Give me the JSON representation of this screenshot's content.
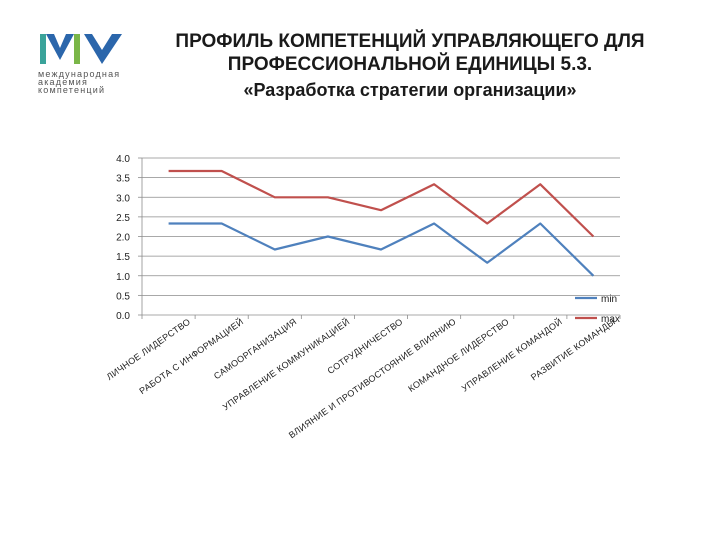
{
  "logo": {
    "line1": "международная",
    "line2": "академия",
    "line3": "компетенций",
    "colors": {
      "green": "#7ab648",
      "blue": "#2b66ab",
      "teal": "#3aa39a"
    }
  },
  "title": {
    "line1": "ПРОФИЛЬ КОМПЕТЕНЦИЙ УПРАВЛЯЮЩЕГО ДЛЯ",
    "line2": "ПРОФЕССИОНАЛЬНОЙ ЕДИНИЦЫ 5.3.",
    "line3": "«Разработка стратегии организации»"
  },
  "chart_data": {
    "type": "line",
    "categories": [
      "ЛИЧНОЕ ЛИДЕРСТВО",
      "РАБОТА С ИНФОРМАЦИЕЙ",
      "САМООРГАНИЗАЦИЯ",
      "УПРАВЛЕНИЕ КОММУНИКАЦИЕЙ",
      "СОТРУДНИЧЕСТВО",
      "ВЛИЯНИЕ И ПРОТИВОСТОЯНИЕ ВЛИЯНИЮ",
      "КОМАНДНОЕ ЛИДЕРСТВО",
      "УПРАВЛЕНИЕ КОМАНДОЙ",
      "РАЗВИТИЕ КОМАНДЫ"
    ],
    "series": [
      {
        "name": "min",
        "values": [
          2.33,
          2.33,
          1.67,
          2.0,
          1.67,
          2.33,
          1.33,
          2.33,
          1.0
        ],
        "color": "#4f81bd"
      },
      {
        "name": "max",
        "values": [
          3.67,
          3.67,
          3.0,
          3.0,
          2.67,
          3.33,
          2.33,
          3.33,
          2.0
        ],
        "color": "#c0504d"
      }
    ],
    "ylim": [
      0,
      4
    ],
    "yticks": [
      "0.0",
      "0.5",
      "1.0",
      "1.5",
      "2.0",
      "2.5",
      "3.0",
      "3.5",
      "4.0"
    ],
    "grid": true,
    "legend": "right"
  }
}
